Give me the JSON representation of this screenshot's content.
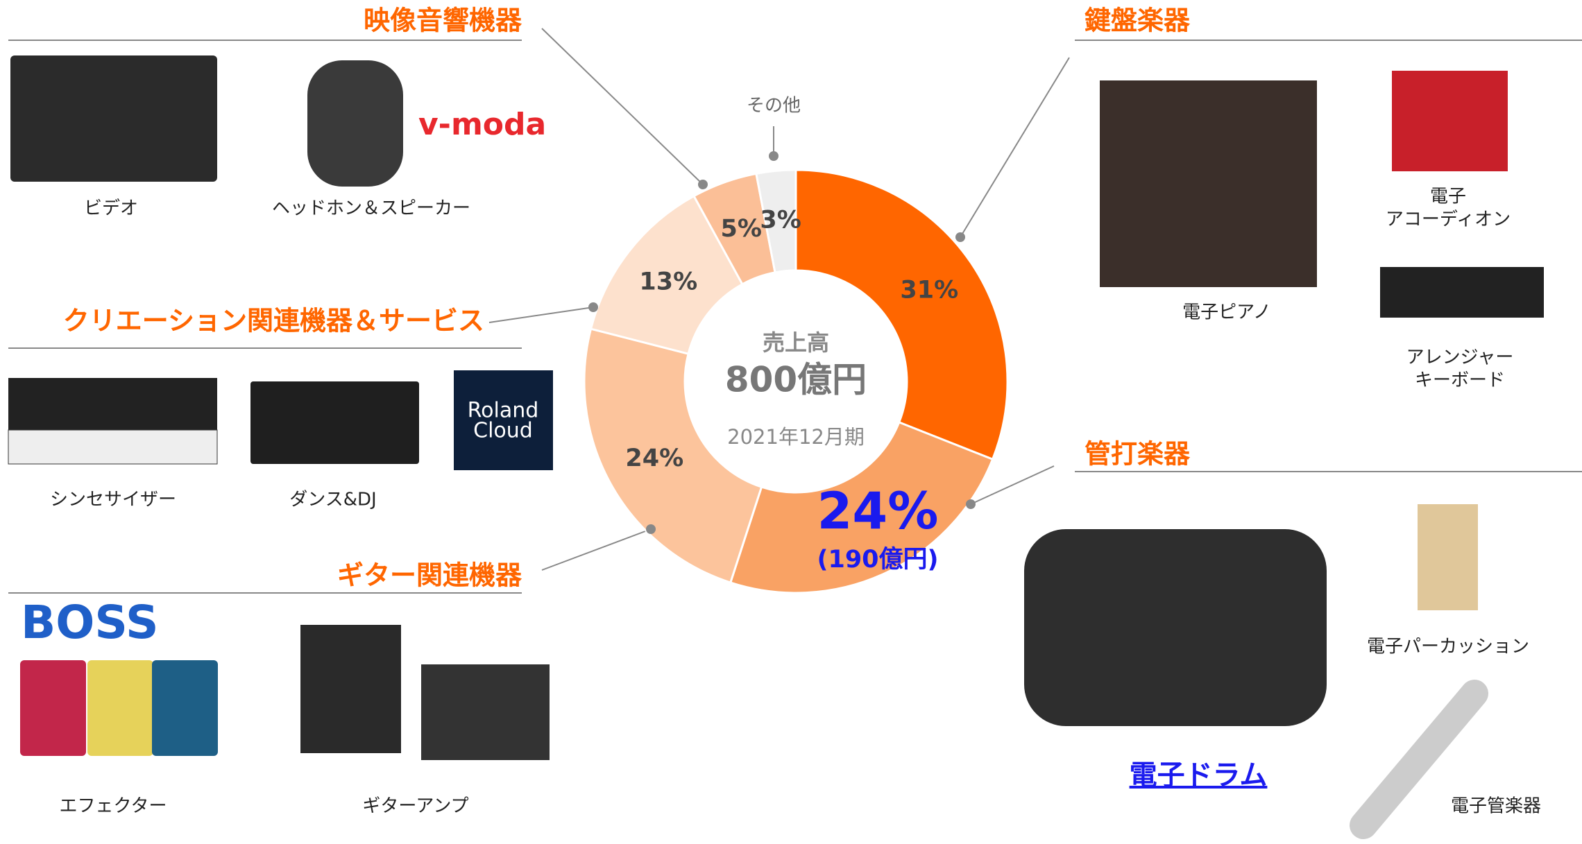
{
  "chart_data": {
    "type": "pie",
    "categories": [
      "鍵盤楽器",
      "管打楽器",
      "ギター関連機器",
      "クリエーション関連機器＆サービス",
      "映像音響機器",
      "その他"
    ],
    "values": [
      31,
      24,
      24,
      13,
      5,
      3
    ],
    "value_labels": [
      "31%",
      "24%",
      "24%",
      "13%",
      "5%",
      "3%"
    ],
    "colors": [
      "#ff6600",
      "#f9a264",
      "#fcc49c",
      "#fde1cd",
      "#fbbf97",
      "#eeeeee"
    ],
    "highlight": 1,
    "highlight_note": "(190億円)",
    "center_label": "売上高",
    "center_value": "800億円",
    "center_period": "2021年12月期",
    "product_labels": [
      [
        "ビデオ"
      ],
      [
        "ヘッドホン＆スピーカー"
      ],
      [
        "シンセサイザー"
      ],
      [
        "ダンス&DJ"
      ],
      [
        "エフェクター"
      ],
      [
        "ギターアンプ"
      ],
      [
        "電子ピアノ"
      ],
      [
        "電子",
        "アコーディオン"
      ],
      [
        "アレンジャー",
        "キーボード"
      ],
      [
        "電子ドラム"
      ],
      [
        "電子パーカッション"
      ],
      [
        "電子管楽器"
      ]
    ],
    "logos": [
      "v-moda",
      "BOSS",
      "Roland",
      "Cloud"
    ]
  }
}
